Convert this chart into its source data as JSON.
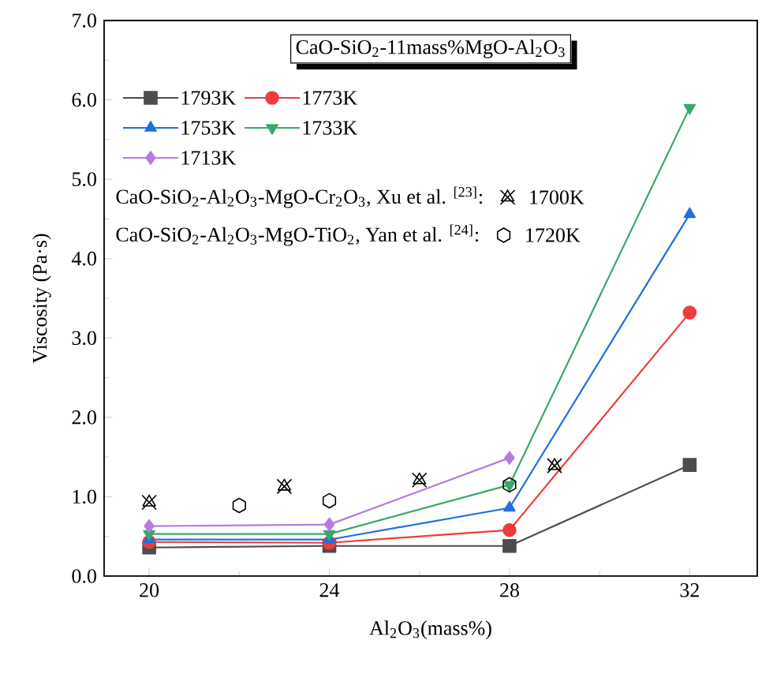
{
  "chart_data": {
    "type": "line",
    "title": "CaO-SiO$_{2}$-11mass%MgO-Al$_{2}$O$_{3}$",
    "xlabel": "Al$_{2}$O$_{3}$(mass%)",
    "ylabel": "Viscosity (Pa·s)",
    "xlim": [
      19,
      33.5
    ],
    "ylim": [
      0,
      7
    ],
    "xticks": [
      20,
      24,
      28,
      32
    ],
    "yticks": [
      {
        "value": 0,
        "label": "0.0"
      },
      {
        "value": 1,
        "label": "1.0"
      },
      {
        "value": 2,
        "label": "2.0"
      },
      {
        "value": 3,
        "label": "3.0"
      },
      {
        "value": 4,
        "label": "4.0"
      },
      {
        "value": 5,
        "label": "5.0"
      },
      {
        "value": 6,
        "label": "6.0"
      },
      {
        "value": 7,
        "label": "7.0"
      }
    ],
    "legend": "top left",
    "grid": false,
    "annotations": [
      "CaO-SiO$_{2}$-Al$_{2}$O$_{3}$-MgO-Cr$_{2}$O$_{3}$, Xu et al. $^{[23]}$:",
      "CaO-SiO$_{2}$-Al$_{2}$O$_{3}$-MgO-TiO$_{2}$, Yan et al. $^{[24]}$:"
    ],
    "series": [
      {
        "name": "1793K",
        "color": "#4d4d4d",
        "marker": "square",
        "line_style": "solid",
        "x": [
          20,
          24,
          28,
          32
        ],
        "values": [
          0.36,
          0.38,
          0.38,
          1.4
        ]
      },
      {
        "name": "1773K",
        "color": "#ef3b3b",
        "marker": "circle",
        "line_style": "solid",
        "x": [
          20,
          24,
          28,
          32
        ],
        "values": [
          0.43,
          0.42,
          0.58,
          3.32
        ]
      },
      {
        "name": "1753K",
        "color": "#1f6fdc",
        "marker": "triangle",
        "line_style": "solid",
        "x": [
          20,
          24,
          28,
          32
        ],
        "values": [
          0.46,
          0.46,
          0.86,
          4.56
        ]
      },
      {
        "name": "1733K",
        "color": "#3aa86b",
        "marker": "triangle-down",
        "line_style": "solid",
        "x": [
          20,
          24,
          28,
          32
        ],
        "values": [
          0.53,
          0.53,
          1.15,
          5.9
        ]
      },
      {
        "name": "1713K",
        "color": "#b57ce0",
        "marker": "diamond",
        "line_style": "solid",
        "x": [
          20,
          24,
          28
        ],
        "values": [
          0.63,
          0.65,
          1.49
        ]
      },
      {
        "name": "1700K",
        "type": "scatter",
        "color": "#000000",
        "marker": "cross",
        "x": [
          20,
          23,
          26,
          29
        ],
        "values": [
          0.93,
          1.13,
          1.21,
          1.39
        ]
      },
      {
        "name": "1720K",
        "type": "scatter",
        "color": "#000000",
        "x": [
          22,
          24,
          28
        ],
        "values": [
          0.89,
          0.95,
          1.15
        ]
      }
    ]
  }
}
